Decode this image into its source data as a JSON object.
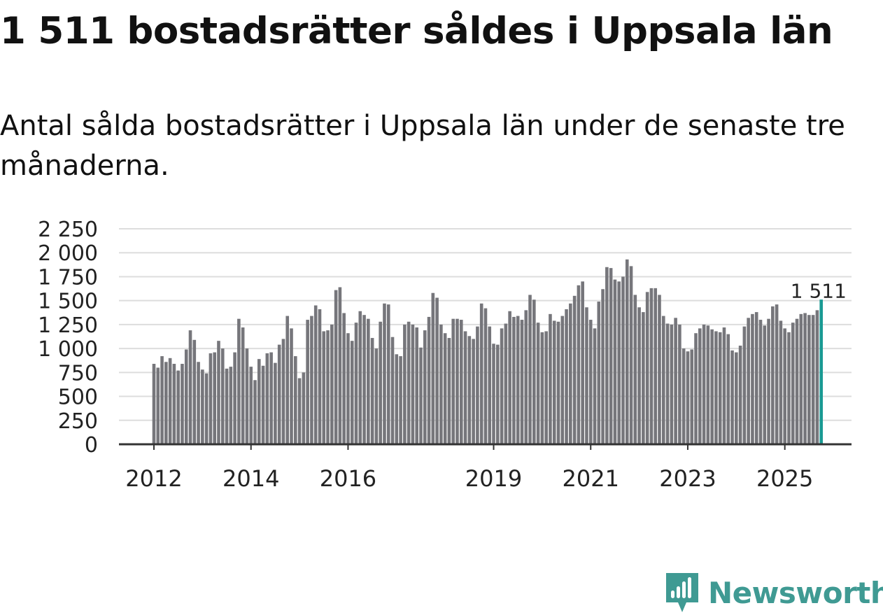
{
  "title": "1 511 bostadsrätter såldes i Uppsala län",
  "subtitle": "Antal sålda bostadsrätter i Uppsala län under de senaste tre månaderna.",
  "brand": {
    "name": "Newsworthy",
    "color": "#3f9a93"
  },
  "colors": {
    "bar": "#76767b",
    "highlight": "#1a9a93",
    "grid": "#dddddd",
    "axis": "#333333"
  },
  "chart_data": {
    "type": "bar",
    "title": "1 511 bostadsrätter såldes i Uppsala län",
    "xlabel": "",
    "ylabel": "",
    "ylim": [
      0,
      2250
    ],
    "yticks": [
      0,
      250,
      500,
      750,
      1000,
      1250,
      1500,
      1750,
      2000,
      2250
    ],
    "ytick_labels": [
      "0",
      "250",
      "500",
      "750",
      "1 000",
      "1 250",
      "1 500",
      "1 750",
      "2 000",
      "2 250"
    ],
    "x_start": "2012-01",
    "xtick_labels": [
      {
        "label": "2012",
        "index": 0
      },
      {
        "label": "2014",
        "index": 24
      },
      {
        "label": "2016",
        "index": 48
      },
      {
        "label": "2019",
        "index": 84
      },
      {
        "label": "2021",
        "index": 108
      },
      {
        "label": "2023",
        "index": 132
      },
      {
        "label": "2025",
        "index": 156
      }
    ],
    "annotation": {
      "label": "1 511",
      "index": 164
    },
    "values": [
      840,
      800,
      920,
      860,
      900,
      840,
      770,
      840,
      990,
      1190,
      1090,
      860,
      780,
      740,
      950,
      960,
      1080,
      1000,
      790,
      810,
      960,
      1310,
      1220,
      1000,
      810,
      670,
      890,
      820,
      950,
      960,
      850,
      1040,
      1100,
      1340,
      1210,
      920,
      690,
      750,
      1300,
      1340,
      1450,
      1410,
      1180,
      1190,
      1250,
      1610,
      1640,
      1370,
      1160,
      1080,
      1270,
      1390,
      1350,
      1310,
      1110,
      1000,
      1280,
      1470,
      1460,
      1120,
      940,
      920,
      1250,
      1280,
      1250,
      1220,
      1010,
      1190,
      1330,
      1580,
      1530,
      1250,
      1160,
      1110,
      1310,
      1310,
      1300,
      1180,
      1130,
      1100,
      1230,
      1470,
      1420,
      1230,
      1050,
      1040,
      1210,
      1260,
      1390,
      1330,
      1340,
      1300,
      1400,
      1560,
      1510,
      1270,
      1170,
      1180,
      1360,
      1290,
      1280,
      1340,
      1410,
      1470,
      1550,
      1660,
      1700,
      1430,
      1300,
      1210,
      1490,
      1620,
      1850,
      1840,
      1720,
      1700,
      1750,
      1930,
      1860,
      1560,
      1430,
      1380,
      1590,
      1630,
      1630,
      1560,
      1340,
      1260,
      1250,
      1320,
      1250,
      1000,
      970,
      990,
      1160,
      1210,
      1250,
      1240,
      1200,
      1180,
      1170,
      1220,
      1150,
      980,
      960,
      1030,
      1230,
      1320,
      1360,
      1380,
      1300,
      1240,
      1310,
      1440,
      1460,
      1290,
      1210,
      1170,
      1270,
      1310,
      1360,
      1370,
      1350,
      1350,
      1400,
      1511
    ]
  }
}
